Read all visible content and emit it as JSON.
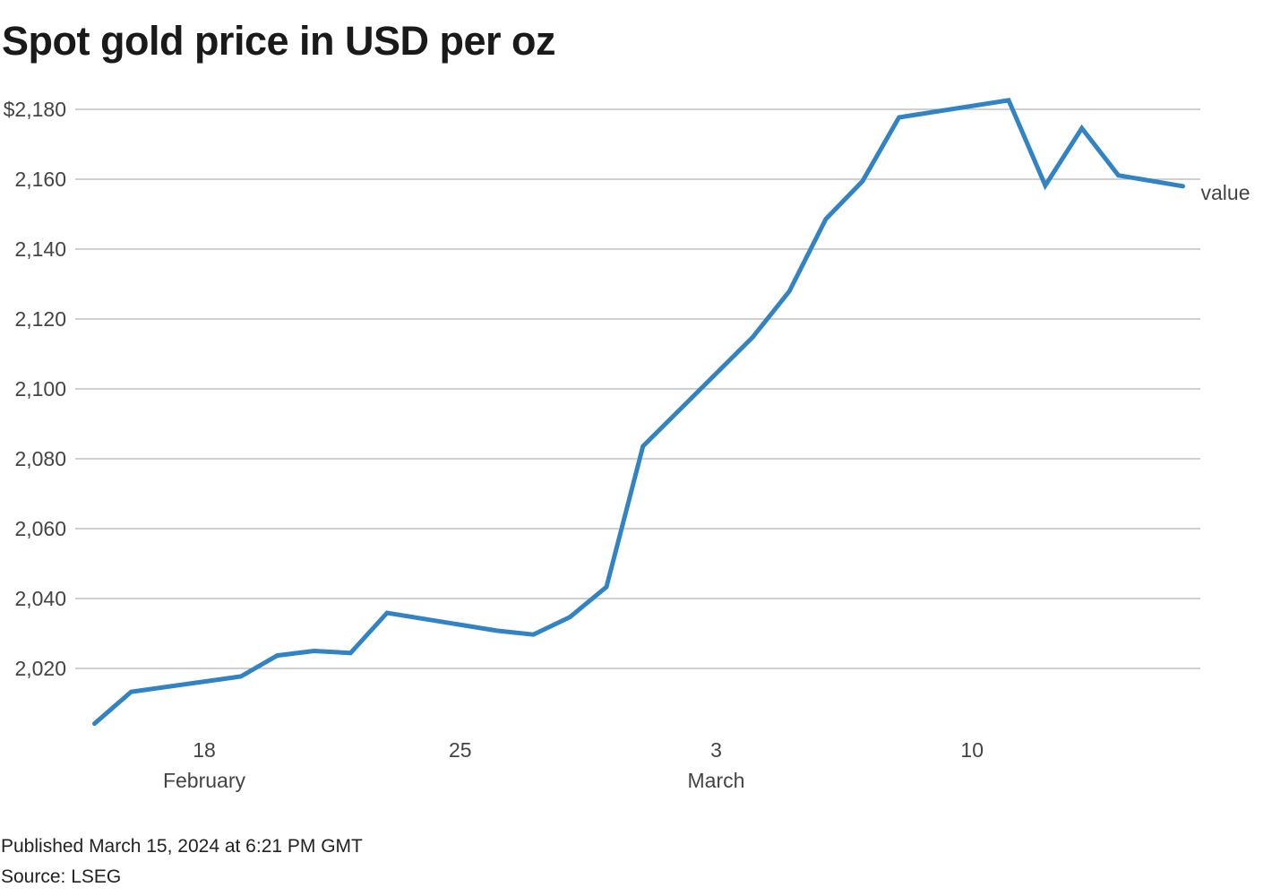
{
  "chart_data": {
    "type": "line",
    "title": "Spot gold price in USD per oz",
    "xlabel": "",
    "ylabel": "",
    "ylim": [
      2000,
      2180
    ],
    "yticks": [
      2020,
      2040,
      2060,
      2080,
      2100,
      2120,
      2140,
      2160,
      2180
    ],
    "ytick_labels": [
      "2,020",
      "2,040",
      "2,060",
      "2,080",
      "2,100",
      "2,120",
      "2,140",
      "2,160",
      "$2,180"
    ],
    "xticks": [
      {
        "date": "2024-02-18",
        "label": "18",
        "month": "February"
      },
      {
        "date": "2024-02-25",
        "label": "25",
        "month": ""
      },
      {
        "date": "2024-03-03",
        "label": "3",
        "month": "March"
      },
      {
        "date": "2024-03-10",
        "label": "10",
        "month": ""
      }
    ],
    "grid": true,
    "series": [
      {
        "name": "value",
        "color": "#3283c4",
        "x": [
          "2024-02-15",
          "2024-02-16",
          "2024-02-19",
          "2024-02-20",
          "2024-02-21",
          "2024-02-22",
          "2024-02-23",
          "2024-02-26",
          "2024-02-27",
          "2024-02-28",
          "2024-02-29",
          "2024-03-01",
          "2024-03-04",
          "2024-03-05",
          "2024-03-06",
          "2024-03-07",
          "2024-03-08",
          "2024-03-11",
          "2024-03-12",
          "2024-03-13",
          "2024-03-14",
          "2024-03-15T18:21"
        ],
        "values": [
          2004.2,
          2013.3,
          2017.7,
          2023.7,
          2025.0,
          2024.4,
          2035.9,
          2030.8,
          2029.7,
          2034.7,
          2043.3,
          2083.6,
          2114.8,
          2127.9,
          2148.6,
          2159.4,
          2177.7,
          2182.6,
          2158.2,
          2174.6,
          2161.1,
          2158.0
        ]
      }
    ]
  },
  "footer": {
    "published": "Published March 15, 2024 at 6:21 PM GMT",
    "source": "Source: LSEG"
  }
}
